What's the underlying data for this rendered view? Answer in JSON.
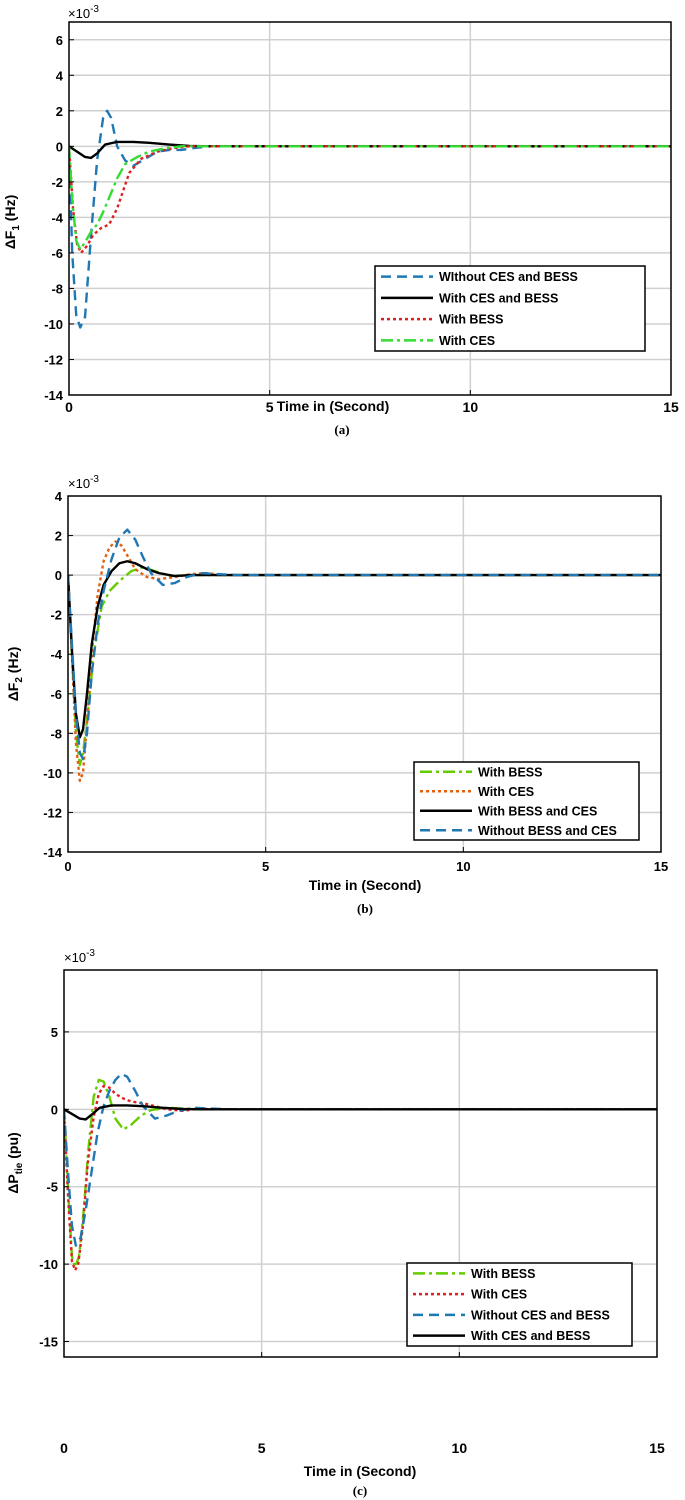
{
  "figure": {
    "panels": [
      {
        "caption": "(a)"
      },
      {
        "caption": "(b)"
      },
      {
        "caption": "(c)"
      }
    ]
  },
  "chart_data": [
    {
      "type": "line",
      "xlabel": "Time in (Second)",
      "ylabel": "ΔF 1 (Hz)",
      "ylabel_main": "ΔF",
      "ylabel_sub": "1",
      "ylabel_unit": "(Hz)",
      "exponent_base": "×10",
      "exponent_power": "-3",
      "xlim": [
        0,
        15
      ],
      "ylim": [
        -14,
        7
      ],
      "xticks": [
        0,
        5,
        10,
        15
      ],
      "yticks": [
        6,
        4,
        2,
        0,
        -2,
        -4,
        -6,
        -8,
        -10,
        -12,
        -14
      ],
      "grid": true,
      "legend_position": "lower-right",
      "series": [
        {
          "name": "WIthout CES and BESS",
          "color": "#1f77b4",
          "dash": "10,6",
          "x": [
            0,
            0.08,
            0.18,
            0.28,
            0.4,
            0.55,
            0.7,
            0.85,
            0.95,
            1.05,
            1.2,
            1.4,
            1.6,
            1.9,
            2.2,
            2.5,
            2.8,
            3.1,
            3.5,
            4,
            15
          ],
          "y": [
            0,
            -6,
            -9.5,
            -10.2,
            -9.6,
            -5,
            -0.8,
            1.6,
            2,
            1.6,
            0,
            -0.8,
            -1.1,
            -0.7,
            -0.3,
            -0.2,
            -0.2,
            -0.1,
            0,
            0,
            0
          ]
        },
        {
          "name": "With CES and BESS",
          "color": "#000000",
          "dash": "",
          "x": [
            0,
            0.2,
            0.4,
            0.55,
            0.7,
            0.9,
            1.2,
            1.6,
            2.0,
            2.5,
            3.0,
            3.5,
            15
          ],
          "y": [
            0,
            -0.3,
            -0.6,
            -0.65,
            -0.4,
            0.1,
            0.25,
            0.25,
            0.2,
            0.1,
            0.02,
            0,
            0
          ]
        },
        {
          "name": "With BESS",
          "color": "#e02020",
          "dash": "3,3",
          "x": [
            0,
            0.1,
            0.2,
            0.3,
            0.45,
            0.6,
            0.8,
            1.0,
            1.2,
            1.5,
            1.8,
            2.2,
            2.6,
            3.0,
            3.5,
            15
          ],
          "y": [
            0,
            -3.5,
            -5.5,
            -6,
            -5.6,
            -5,
            -4.6,
            -4.4,
            -3.5,
            -1.5,
            -0.7,
            -0.3,
            -0.1,
            0,
            0,
            0
          ]
        },
        {
          "name": "With CES",
          "color": "#33dd33",
          "dash": "12,4,3,4",
          "x": [
            0,
            0.08,
            0.18,
            0.28,
            0.4,
            0.55,
            0.7,
            0.85,
            1.0,
            1.2,
            1.4,
            1.7,
            2.0,
            2.4,
            2.8,
            3.2,
            15
          ],
          "y": [
            0,
            -3,
            -5.3,
            -5.8,
            -5.4,
            -4.8,
            -4.4,
            -3.7,
            -2.9,
            -1.8,
            -1.0,
            -0.6,
            -0.3,
            -0.1,
            0,
            0,
            0
          ]
        }
      ]
    },
    {
      "type": "line",
      "xlabel": "Time in (Second)",
      "ylabel": "ΔF 2 (Hz)",
      "ylabel_main": "ΔF",
      "ylabel_sub": "2",
      "ylabel_unit": "(Hz)",
      "exponent_base": "×10",
      "exponent_power": "-3",
      "xlim": [
        0,
        15
      ],
      "ylim": [
        -14,
        4
      ],
      "xticks": [
        0,
        5,
        10,
        15
      ],
      "yticks": [
        4,
        2,
        0,
        -2,
        -4,
        -6,
        -8,
        -10,
        -12,
        -14
      ],
      "grid": true,
      "legend_position": "lower-right",
      "series": [
        {
          "name": "With BESS",
          "color": "#66cc00",
          "dash": "12,4,3,4",
          "x": [
            0,
            0.1,
            0.2,
            0.3,
            0.38,
            0.5,
            0.65,
            0.85,
            1.05,
            1.3,
            1.6,
            1.9,
            2.2,
            2.6,
            3.0,
            3.5,
            15
          ],
          "y": [
            0,
            -4,
            -8,
            -9.6,
            -9,
            -7,
            -4,
            -1.6,
            -0.8,
            -0.3,
            0.2,
            0.4,
            0.2,
            -0.05,
            0,
            0,
            0
          ]
        },
        {
          "name": "With CES",
          "color": "#e06010",
          "dash": "3,3",
          "x": [
            0,
            0.1,
            0.2,
            0.3,
            0.38,
            0.48,
            0.6,
            0.75,
            0.9,
            1.05,
            1.2,
            1.35,
            1.5,
            1.7,
            2.0,
            2.3,
            2.7,
            3.1,
            3.5,
            4,
            15
          ],
          "y": [
            0,
            -4,
            -8.5,
            -10.4,
            -10,
            -7.5,
            -4,
            -1,
            0.7,
            1.4,
            1.7,
            1.5,
            1,
            0.3,
            -0.1,
            -0.2,
            -0.1,
            0.05,
            0.1,
            0,
            0
          ]
        },
        {
          "name": "With BESS and CES",
          "color": "#000000",
          "dash": "",
          "x": [
            0,
            0.1,
            0.2,
            0.3,
            0.38,
            0.48,
            0.6,
            0.75,
            0.9,
            1.1,
            1.3,
            1.5,
            1.7,
            2.0,
            2.3,
            2.7,
            3.1,
            3.6,
            15
          ],
          "y": [
            0,
            -3.8,
            -7,
            -8.2,
            -7.8,
            -6,
            -3.5,
            -1.6,
            -0.5,
            0.2,
            0.6,
            0.7,
            0.6,
            0.3,
            0.1,
            -0.05,
            0,
            0,
            0
          ]
        },
        {
          "name": "Without BESS and CES",
          "color": "#1f77b4",
          "dash": "10,6",
          "x": [
            0,
            0.1,
            0.2,
            0.3,
            0.38,
            0.48,
            0.6,
            0.75,
            0.9,
            1.1,
            1.3,
            1.5,
            1.7,
            1.9,
            2.1,
            2.4,
            2.7,
            3.0,
            3.4,
            3.8,
            4.3,
            15
          ],
          "y": [
            0,
            -3.5,
            -7,
            -9,
            -9.3,
            -8,
            -5,
            -2.5,
            -0.8,
            0.8,
            1.9,
            2.3,
            1.8,
            0.9,
            0.1,
            -0.5,
            -0.4,
            -0.1,
            0.1,
            0.05,
            0,
            0
          ]
        }
      ]
    },
    {
      "type": "line",
      "xlabel": "Time in (Second)",
      "ylabel": "ΔP tie (pu)",
      "ylabel_main": "ΔP",
      "ylabel_sub": "tie",
      "ylabel_unit": "(pu)",
      "exponent_base": "×10",
      "exponent_power": "-3",
      "xlim": [
        0,
        15
      ],
      "ylim": [
        -16,
        9
      ],
      "xticks": [
        0,
        5,
        10,
        15
      ],
      "yticks": [
        5,
        0,
        -5,
        -10,
        -15
      ],
      "grid": true,
      "legend_position": "lower-right",
      "series": [
        {
          "name": "With BESS",
          "color": "#66cc00",
          "dash": "12,4,3,4",
          "x": [
            0,
            0.1,
            0.2,
            0.28,
            0.38,
            0.5,
            0.62,
            0.75,
            0.88,
            1.0,
            1.15,
            1.3,
            1.5,
            1.7,
            1.95,
            2.2,
            2.6,
            3.0,
            3.5,
            4,
            15
          ],
          "y": [
            0,
            -5,
            -9.5,
            -10.2,
            -9.5,
            -6.5,
            -2.5,
            0.8,
            1.9,
            1.8,
            0.8,
            -0.6,
            -1.3,
            -1.0,
            -0.4,
            -0.05,
            0.1,
            0.05,
            0,
            0,
            0
          ]
        },
        {
          "name": "With CES",
          "color": "#e02020",
          "dash": "3,3",
          "x": [
            0,
            0.1,
            0.2,
            0.28,
            0.36,
            0.48,
            0.6,
            0.75,
            0.88,
            1.0,
            1.15,
            1.3,
            1.5,
            1.7,
            2.0,
            2.3,
            2.6,
            3.0,
            3.4,
            3.8,
            4.3,
            15
          ],
          "y": [
            0,
            -5.5,
            -9.8,
            -10.4,
            -10,
            -7.5,
            -3.5,
            -0.5,
            1.0,
            1.5,
            1.4,
            1.0,
            0.7,
            0.5,
            0.4,
            0.2,
            0,
            -0.1,
            0.05,
            0,
            0,
            0
          ]
        },
        {
          "name": "Without CES and BESS",
          "color": "#1f77b4",
          "dash": "10,6",
          "x": [
            0,
            0.1,
            0.2,
            0.3,
            0.42,
            0.55,
            0.7,
            0.85,
            1.0,
            1.15,
            1.3,
            1.45,
            1.6,
            1.8,
            2.0,
            2.3,
            2.6,
            2.9,
            3.3,
            3.7,
            4.2,
            15
          ],
          "y": [
            0,
            -4,
            -7.5,
            -8.8,
            -8.3,
            -6.5,
            -4,
            -1.5,
            0.2,
            1.2,
            1.9,
            2.3,
            2.1,
            1.2,
            0.2,
            -0.6,
            -0.4,
            -0.1,
            0.1,
            0.05,
            0,
            0
          ]
        },
        {
          "name": "With CES and BESS",
          "color": "#000000",
          "dash": "",
          "x": [
            0,
            0.2,
            0.4,
            0.55,
            0.7,
            0.9,
            1.2,
            1.6,
            2.0,
            2.5,
            3.0,
            3.5,
            15
          ],
          "y": [
            0,
            -0.3,
            -0.6,
            -0.65,
            -0.35,
            0.1,
            0.25,
            0.25,
            0.2,
            0.1,
            0.02,
            0,
            0
          ]
        }
      ]
    }
  ]
}
